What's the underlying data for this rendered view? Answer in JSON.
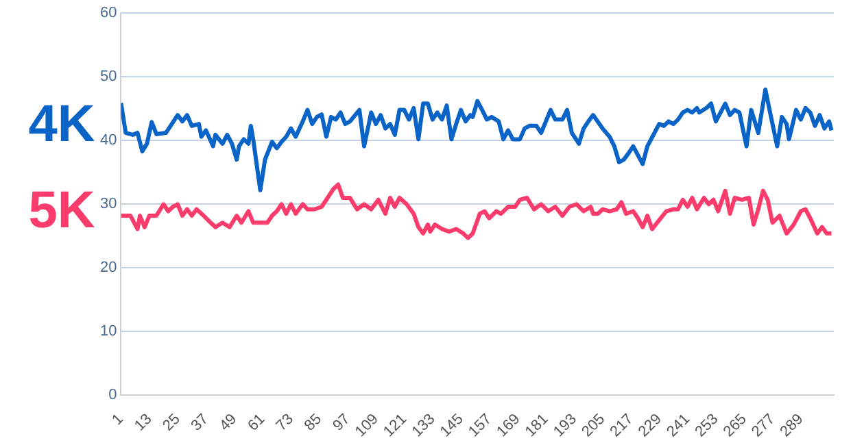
{
  "chart_data": {
    "type": "line",
    "xlim": [
      1,
      303
    ],
    "xticks": [
      1,
      13,
      25,
      37,
      49,
      61,
      73,
      85,
      97,
      109,
      121,
      133,
      145,
      157,
      169,
      181,
      193,
      205,
      217,
      229,
      241,
      253,
      265,
      277,
      289
    ],
    "ylim": [
      0,
      60
    ],
    "yticks": [
      0,
      10,
      20,
      30,
      40,
      50,
      60
    ],
    "grid": "y",
    "legend": false,
    "marker": "none",
    "line_style": "solid",
    "series": [
      {
        "name": "4K",
        "color": "#0a64c8",
        "x": [
          1,
          3,
          6,
          8,
          10,
          12,
          14,
          16,
          20,
          22,
          25,
          27,
          29,
          31,
          34,
          35,
          37,
          40,
          41,
          44,
          46,
          48,
          50,
          51,
          53,
          55,
          56,
          57,
          60,
          62,
          65,
          67,
          69,
          71,
          73,
          75,
          78,
          80,
          82,
          84,
          86,
          88,
          90,
          92,
          94,
          96,
          98,
          102,
          104,
          107,
          109,
          111,
          113,
          115,
          117,
          119,
          121,
          123,
          125,
          127,
          129,
          131,
          133,
          135,
          137,
          139,
          141,
          143,
          145,
          147,
          149,
          150,
          152,
          154,
          156,
          158,
          161,
          163,
          165,
          167,
          170,
          172,
          174,
          177,
          179,
          181,
          183,
          185,
          188,
          190,
          192,
          195,
          197,
          199,
          201,
          205,
          208,
          210,
          212,
          214,
          216,
          218,
          220,
          222,
          224,
          227,
          229,
          231,
          233,
          235,
          237,
          239,
          241,
          243,
          245,
          246,
          249,
          251,
          253,
          255,
          257,
          259,
          261,
          263,
          266,
          268,
          271,
          274,
          276,
          279,
          281,
          283,
          284,
          287,
          289,
          291,
          293,
          295,
          297,
          299,
          301,
          302
        ],
        "values": [
          45.9,
          41.2,
          40.9,
          41.2,
          38.3,
          39.5,
          42.9,
          41,
          41.2,
          42.3,
          44,
          43,
          44,
          42.3,
          42.6,
          40.6,
          41.6,
          39.1,
          40.9,
          39.5,
          40.9,
          39.5,
          37,
          39.1,
          40.2,
          39.5,
          42.3,
          40.2,
          32.2,
          37,
          39.8,
          38.8,
          39.8,
          40.6,
          41.9,
          40.6,
          43,
          44.8,
          42.6,
          43.7,
          44.1,
          40.6,
          43.7,
          43.3,
          44.4,
          42.6,
          43,
          44.8,
          39.1,
          44.4,
          42.6,
          44,
          41.9,
          42.6,
          40.9,
          44.8,
          44.8,
          43.3,
          45.1,
          40.2,
          45.8,
          45.8,
          43.3,
          44.4,
          43.3,
          45.5,
          40.2,
          42.6,
          44.8,
          43,
          44,
          43.7,
          46.2,
          44.8,
          43.3,
          43.7,
          43,
          40.2,
          41.6,
          40.2,
          40.2,
          41.9,
          42.3,
          42.3,
          41.2,
          43,
          44.8,
          43.3,
          43.3,
          44.8,
          41.2,
          39.5,
          41.9,
          43,
          44,
          41.9,
          40.6,
          39.1,
          36.6,
          37,
          38,
          39.1,
          37.7,
          36.3,
          39.1,
          41.2,
          42.6,
          42.3,
          43,
          42.6,
          43.3,
          44.4,
          44.8,
          44.4,
          45.1,
          44.4,
          45.1,
          45.8,
          43,
          44.4,
          45.8,
          44,
          44.8,
          44.4,
          39.1,
          44.8,
          41.2,
          48,
          44.4,
          39.1,
          43.7,
          42.6,
          40.2,
          44.8,
          43.3,
          45.1,
          44.4,
          42.3,
          44,
          41.9,
          43,
          41.6
        ]
      },
      {
        "name": "5K",
        "color": "#fa3c6c",
        "x": [
          1,
          5,
          8,
          9,
          11,
          13,
          16,
          19,
          21,
          23,
          25,
          27,
          29,
          31,
          33,
          36,
          39,
          41,
          44,
          47,
          50,
          52,
          55,
          57,
          60,
          63,
          65,
          67,
          69,
          71,
          73,
          75,
          78,
          80,
          83,
          86,
          88,
          91,
          93,
          95,
          98,
          101,
          104,
          107,
          110,
          113,
          115,
          117,
          119,
          122,
          125,
          127,
          129,
          131,
          132,
          134,
          137,
          140,
          143,
          146,
          148,
          150,
          153,
          155,
          157,
          160,
          162,
          165,
          168,
          170,
          173,
          176,
          179,
          182,
          185,
          188,
          191,
          194,
          197,
          200,
          201,
          203,
          205,
          208,
          211,
          213,
          215,
          218,
          220,
          222,
          224,
          226,
          229,
          232,
          235,
          237,
          239,
          241,
          243,
          245,
          248,
          250,
          252,
          254,
          257,
          259,
          261,
          264,
          267,
          269,
          271,
          273,
          275,
          277,
          280,
          283,
          286,
          289,
          291,
          293,
          296,
          298,
          300,
          302
        ],
        "values": [
          28.2,
          28.2,
          26.1,
          28.2,
          26.4,
          28.2,
          28.2,
          30,
          28.9,
          29.6,
          30,
          28.2,
          29.2,
          28.2,
          29.2,
          28.2,
          27.1,
          26.4,
          27.1,
          26.4,
          28.2,
          27.1,
          28.9,
          27.1,
          27.1,
          27.1,
          28.2,
          28.9,
          30,
          28.5,
          30,
          28.5,
          30,
          29.2,
          29.2,
          29.6,
          30.7,
          32.4,
          33.1,
          31,
          31,
          29.2,
          30,
          29.2,
          30.7,
          28.5,
          31,
          29.6,
          31,
          30,
          28.5,
          26.4,
          25.4,
          26.8,
          25.7,
          26.8,
          26.1,
          25.7,
          26.1,
          25.4,
          24.7,
          25.4,
          28.5,
          28.9,
          27.8,
          28.9,
          28.5,
          29.6,
          29.6,
          30.7,
          31,
          29.2,
          30,
          28.9,
          29.6,
          28.2,
          29.6,
          30,
          28.9,
          29.6,
          28.5,
          28.5,
          29.2,
          28.9,
          29.2,
          30.3,
          28.5,
          28.9,
          27.8,
          26.4,
          28.2,
          26.1,
          27.5,
          28.9,
          29.2,
          29.2,
          30.7,
          29.6,
          31,
          29.2,
          31,
          30,
          30.7,
          28.9,
          32.1,
          28.5,
          31,
          30.7,
          31,
          26.8,
          29.2,
          32.1,
          30.7,
          27.1,
          28.2,
          25.4,
          26.8,
          28.9,
          29.2,
          27.8,
          25.4,
          26.4,
          25.4,
          25.4
        ]
      }
    ]
  }
}
